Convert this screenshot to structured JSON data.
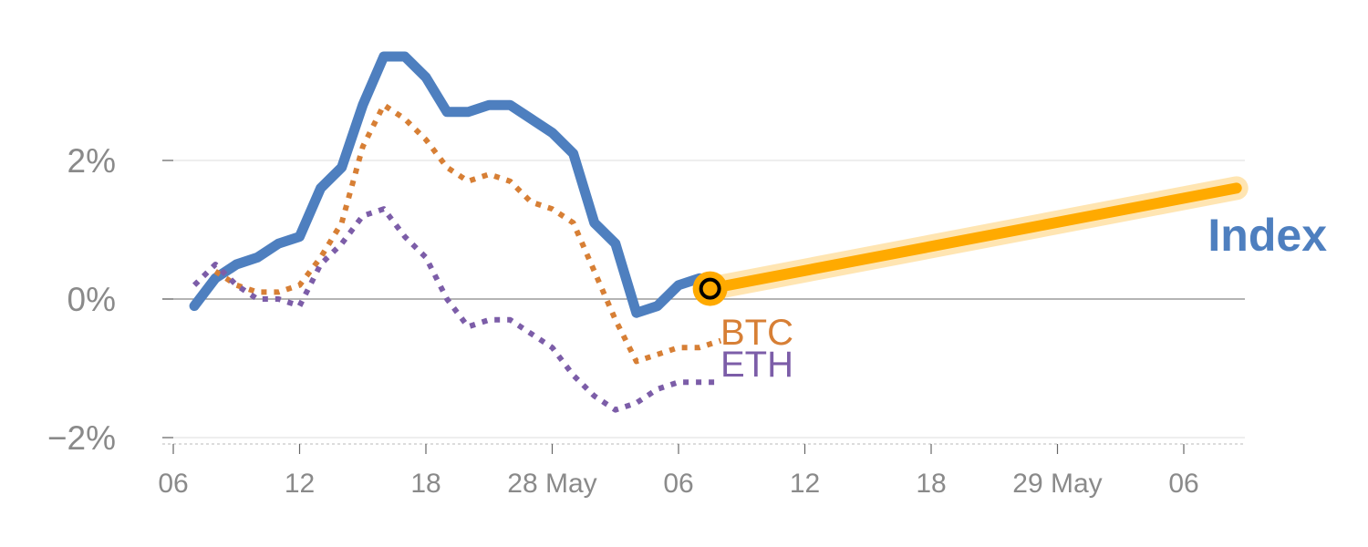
{
  "chart_data": {
    "type": "line",
    "x_unit": "hour",
    "x_tick_labels": [
      "06",
      "12",
      "18",
      "28 May",
      "06",
      "12",
      "18",
      "29 May",
      "06"
    ],
    "y_tick_labels": [
      "2%",
      "0%",
      "−2%"
    ],
    "ylim": [
      -2.1,
      3.6
    ],
    "grid": true,
    "series": [
      {
        "name": "Index",
        "color": "#4e7fbf",
        "style": "solid",
        "x": [
          7,
          8,
          9,
          10,
          11,
          12,
          13,
          14,
          15,
          16,
          17,
          18,
          19,
          20,
          21,
          22,
          23,
          24,
          25,
          26,
          27,
          28,
          29,
          30,
          31,
          32
        ],
        "y": [
          -0.1,
          0.3,
          0.5,
          0.6,
          0.8,
          0.9,
          1.6,
          1.9,
          2.8,
          3.5,
          3.5,
          3.2,
          2.7,
          2.7,
          2.8,
          2.8,
          2.6,
          2.4,
          2.1,
          1.1,
          0.8,
          -0.2,
          -0.1,
          0.2,
          0.3,
          0.2
        ]
      },
      {
        "name": "BTC",
        "color": "#d77f35",
        "style": "dotted",
        "x": [
          8,
          9,
          10,
          11,
          12,
          13,
          14,
          15,
          16,
          17,
          18,
          19,
          20,
          21,
          22,
          23,
          24,
          25,
          26,
          27,
          28,
          29,
          30,
          31,
          32
        ],
        "y": [
          0.4,
          0.2,
          0.1,
          0.1,
          0.2,
          0.6,
          1.1,
          2.2,
          2.8,
          2.6,
          2.3,
          1.9,
          1.7,
          1.8,
          1.7,
          1.4,
          1.3,
          1.1,
          0.4,
          -0.3,
          -0.9,
          -0.8,
          -0.7,
          -0.7,
          -0.6
        ]
      },
      {
        "name": "ETH",
        "color": "#7c5da8",
        "style": "dotted",
        "x": [
          7,
          8,
          9,
          10,
          11,
          12,
          13,
          14,
          15,
          16,
          17,
          18,
          19,
          20,
          21,
          22,
          23,
          24,
          25,
          26,
          27,
          28,
          29,
          30,
          31,
          32
        ],
        "y": [
          0.2,
          0.5,
          0.2,
          0.0,
          0.0,
          -0.1,
          0.5,
          0.8,
          1.2,
          1.3,
          0.9,
          0.6,
          0.0,
          -0.4,
          -0.3,
          -0.3,
          -0.5,
          -0.7,
          -1.1,
          -1.4,
          -1.6,
          -1.5,
          -1.3,
          -1.2,
          -1.2,
          -1.2
        ]
      }
    ],
    "forecast": {
      "color": "#ffaa00",
      "x": [
        31.5,
        56.5
      ],
      "y": [
        0.15,
        1.6
      ]
    },
    "marker": {
      "x": 31.5,
      "y": 0.15,
      "color": "#ffaa00"
    }
  }
}
